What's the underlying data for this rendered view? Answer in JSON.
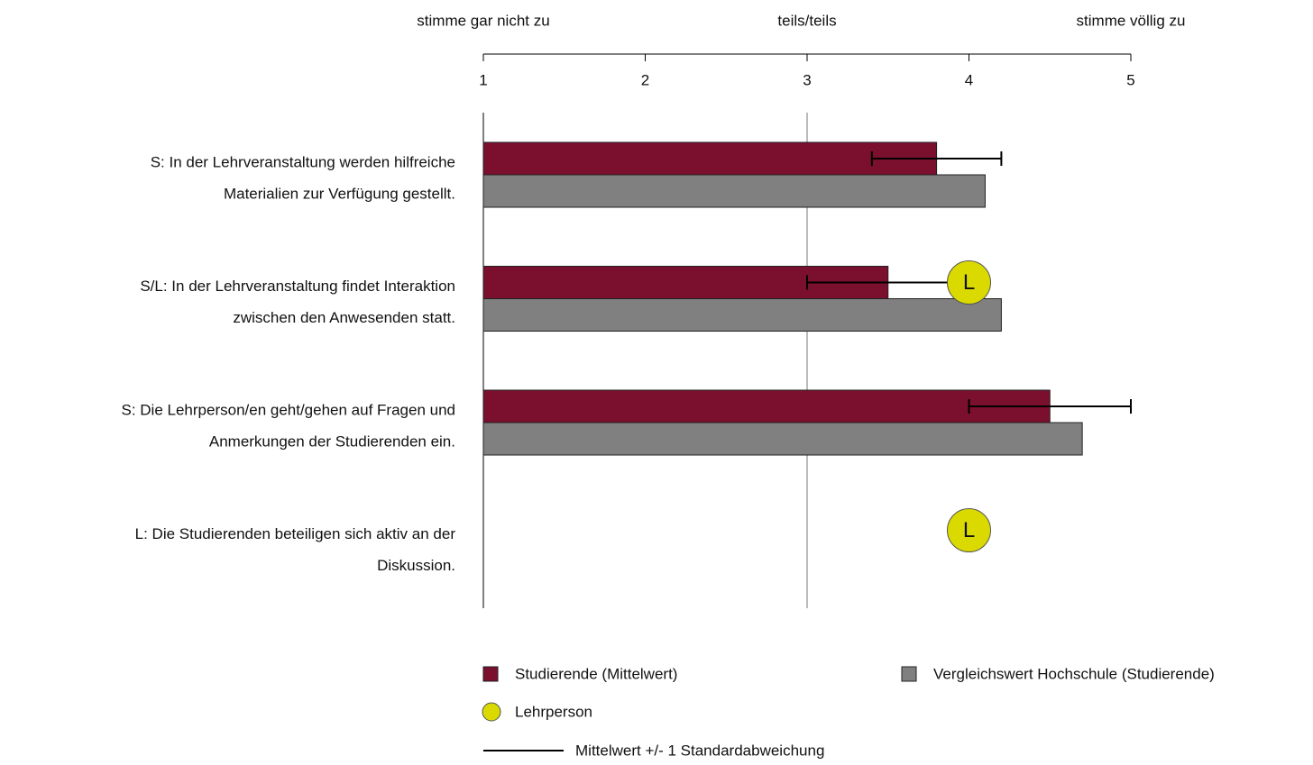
{
  "chart_data": {
    "type": "bar",
    "orientation": "horizontal",
    "categories": [
      "S: In der Lehrveranstaltung werden hilfreiche\nMaterialien zur Verfügung gestellt.",
      "S/L: In der Lehrveranstaltung findet Interaktion\nzwischen den Anwesenden statt.",
      "S: Die Lehrperson/en geht/gehen auf Fragen und\nAnmerkungen der Studierenden ein.",
      "L: Die Studierenden beteiligen sich aktiv an der\nDiskussion."
    ],
    "series": [
      {
        "name": "Studierende (Mittelwert)",
        "color": "#7b0f2e",
        "values": [
          3.8,
          3.5,
          4.5,
          null
        ],
        "errors": [
          0.4,
          0.5,
          0.5,
          null
        ]
      },
      {
        "name": "Vergleichswert Hochschule (Studierende)",
        "color": "#808080",
        "values": [
          4.1,
          4.2,
          4.7,
          null
        ]
      },
      {
        "name": "Lehrperson",
        "color": "#dada00",
        "marker": "circle",
        "marker_label": "L",
        "values": [
          null,
          4.0,
          null,
          4.0
        ]
      }
    ],
    "error_legend": "Mittelwert +/- 1 Standardabweichung",
    "xlim": [
      1,
      5
    ],
    "xticks": [
      1,
      2,
      3,
      4,
      5
    ],
    "x_anchor_labels": [
      {
        "value": 1,
        "label": "stimme gar nicht zu"
      },
      {
        "value": 3,
        "label": "teils/teils"
      },
      {
        "value": 5,
        "label": "stimme völlig zu"
      }
    ],
    "reference_x": 3
  }
}
